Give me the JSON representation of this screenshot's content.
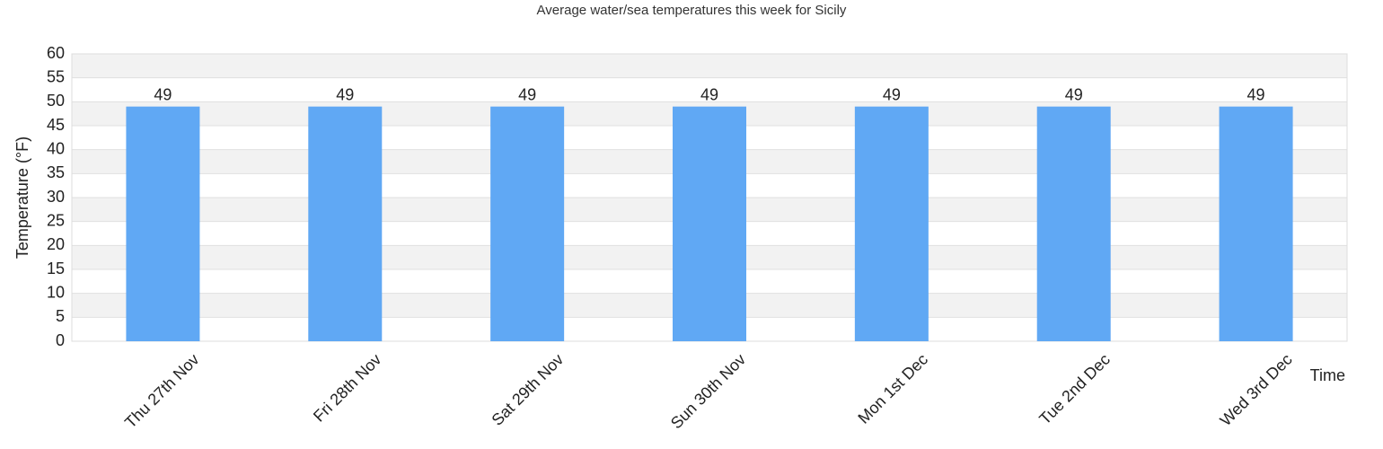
{
  "chart_data": {
    "type": "bar",
    "title": "Average water/sea temperatures this week for Sicily",
    "y_label": "Temperature (°F)",
    "x_label": "Time",
    "categories": [
      "Thu 27th Nov",
      "Fri 28th Nov",
      "Sat 29th Nov",
      "Sun 30th Nov",
      "Mon 1st Dec",
      "Tue 2nd Dec",
      "Wed 3rd Dec"
    ],
    "values": [
      49,
      49,
      49,
      49,
      49,
      49,
      49
    ],
    "color": "#60a8f4",
    "ylim": [
      0,
      60
    ],
    "yticks": [
      0,
      5,
      10,
      15,
      20,
      25,
      30,
      35,
      40,
      45,
      50,
      55,
      60
    ],
    "grid": true
  }
}
